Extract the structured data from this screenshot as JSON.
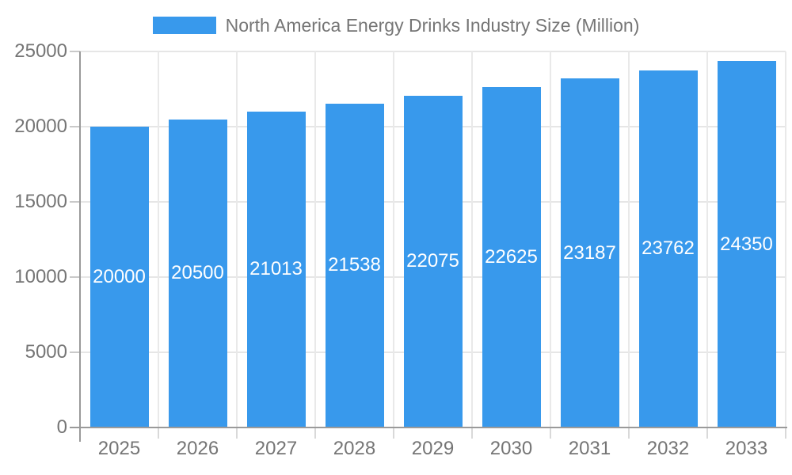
{
  "legend": {
    "label": "North America Energy Drinks Industry Size (Million)",
    "swatch_color": "#3899ec"
  },
  "chart_data": {
    "type": "bar",
    "title": "North America Energy Drinks Industry Size (Million)",
    "categories": [
      "2025",
      "2026",
      "2027",
      "2028",
      "2029",
      "2030",
      "2031",
      "2032",
      "2033"
    ],
    "values": [
      20000,
      20500,
      21013,
      21538,
      22075,
      22625,
      23187,
      23762,
      24350
    ],
    "bar_labels": [
      "20000",
      "20500",
      "21013",
      "21538",
      "22075",
      "22625",
      "23187",
      "23762",
      "24350"
    ],
    "xlabel": "",
    "ylabel": "",
    "ylim": [
      0,
      25000
    ],
    "yticks": [
      0,
      5000,
      10000,
      15000,
      20000,
      25000
    ],
    "ytick_labels": [
      "0",
      "5000",
      "10000",
      "15000",
      "20000",
      "25000"
    ],
    "grid": true,
    "legend_position": "top-center",
    "colors": {
      "bar": "#3899ec",
      "bar_label_text": "#ffffff",
      "axis_text": "#757575",
      "legend_text": "#757575",
      "gridline": "#e6e6e6",
      "axis_line": "#9a9a9a",
      "background": "#ffffff"
    }
  }
}
